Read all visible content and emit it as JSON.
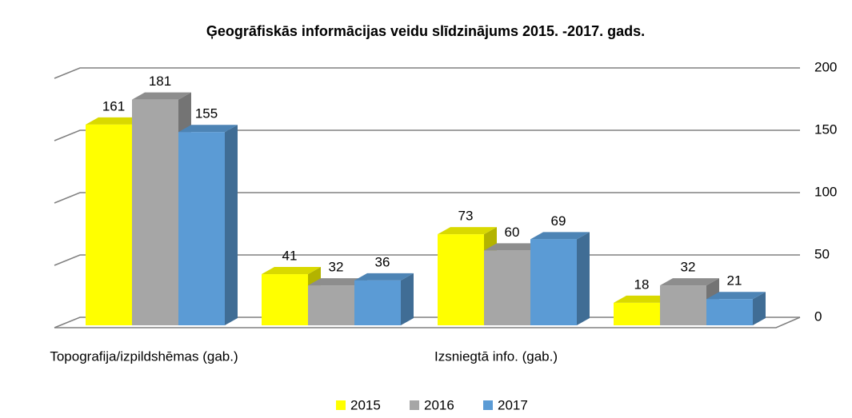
{
  "chart_data": {
    "type": "bar3d",
    "title": "Ģeogrāfiskās informācijas veidu slīdzinājums 2015. -2017. gads.",
    "categories": [
      "Topografija/izpildshēmas (gab.)",
      null,
      "Izsniegtā info. (gab.)",
      null
    ],
    "series": [
      {
        "name": "2015",
        "color": "#ffff00",
        "values": [
          161,
          41,
          73,
          18
        ]
      },
      {
        "name": "2016",
        "color": "#a6a6a6",
        "values": [
          181,
          32,
          60,
          32
        ]
      },
      {
        "name": "2017",
        "color": "#5b9bd5",
        "values": [
          155,
          36,
          69,
          21
        ]
      }
    ],
    "ylim": [
      0,
      200
    ],
    "yticks": [
      0,
      50,
      100,
      150,
      200
    ],
    "grid": true,
    "legend": "bottom"
  }
}
